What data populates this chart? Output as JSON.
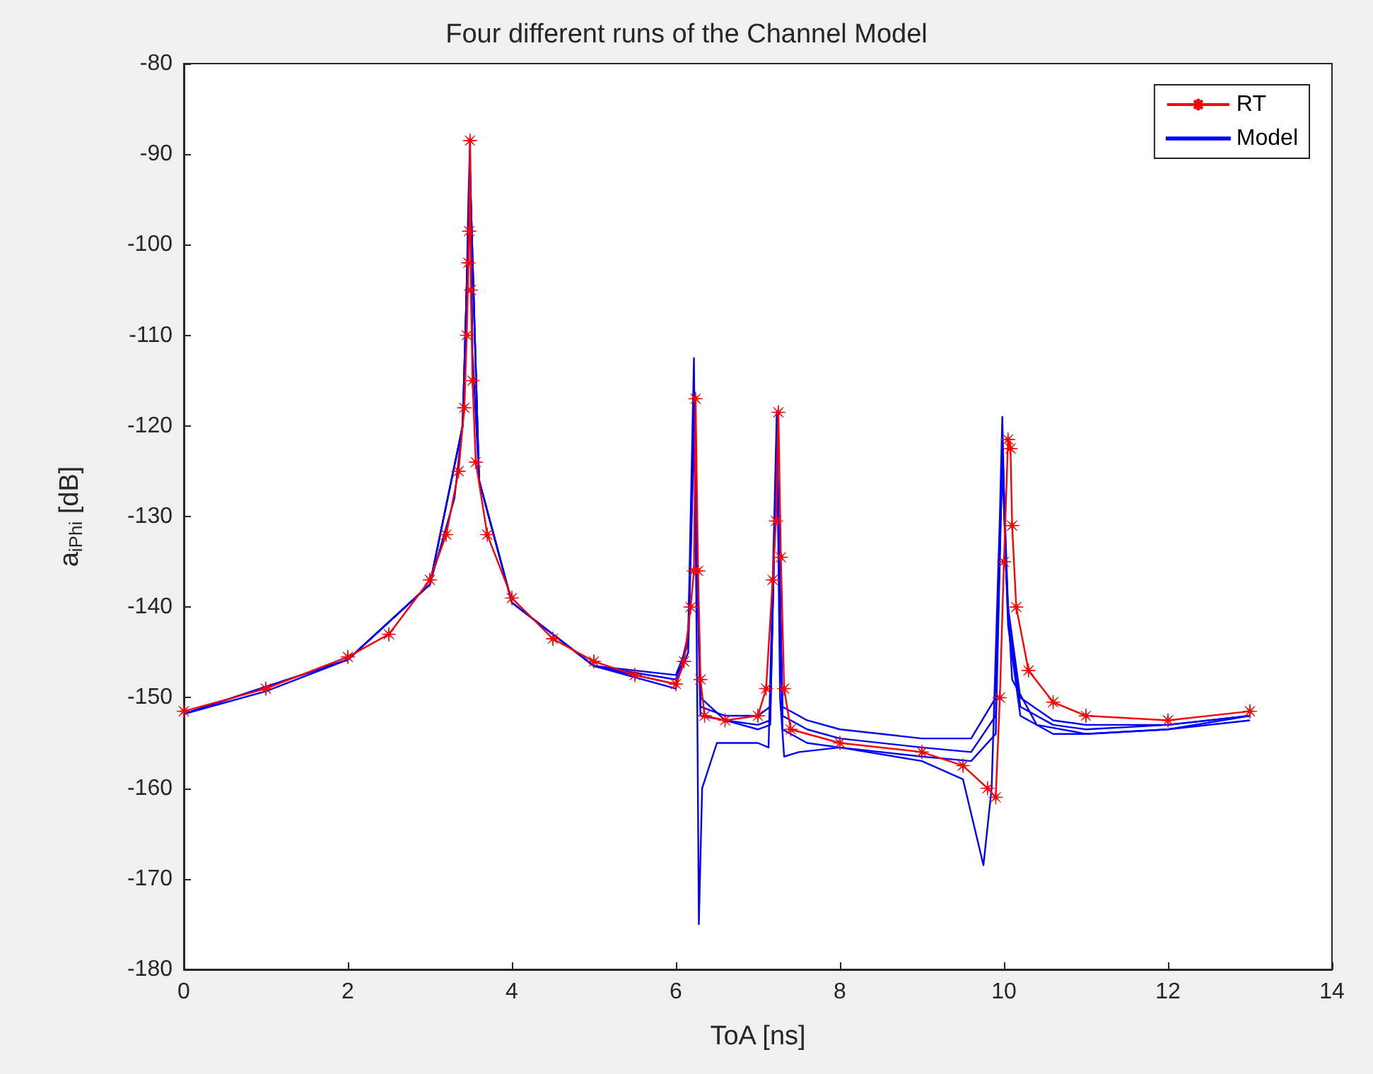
{
  "chart_data": {
    "type": "line",
    "title": "Four different runs of the Channel Model",
    "xlabel": "ToA [ns]",
    "ylabel": "a$_{iPhi}$ [dB]",
    "xlim": [
      0,
      14
    ],
    "xticks": [
      0,
      2,
      4,
      6,
      8,
      10,
      12,
      14
    ],
    "ylim": [
      -180,
      -80
    ],
    "yticks": [
      -180,
      -170,
      -160,
      -150,
      -140,
      -130,
      -120,
      -110,
      -100,
      -90,
      -80
    ],
    "grid": false,
    "legend": "top right",
    "series": [
      {
        "name": "RT",
        "color": "#ff0000",
        "marker": "star",
        "x": [
          0,
          1,
          2,
          2.5,
          3,
          3.2,
          3.35,
          3.42,
          3.45,
          3.47,
          3.48,
          3.49,
          3.5,
          3.52,
          3.56,
          3.7,
          4,
          4.5,
          5,
          5.5,
          6,
          6.1,
          6.18,
          6.22,
          6.24,
          6.27,
          6.3,
          6.35,
          6.6,
          7,
          7.1,
          7.18,
          7.22,
          7.25,
          7.28,
          7.32,
          7.4,
          8,
          9,
          9.5,
          9.8,
          9.9,
          9.95,
          10,
          10.05,
          10.08,
          10.1,
          10.15,
          10.3,
          10.6,
          11,
          12,
          13
        ],
        "values": [
          -151.5,
          -149,
          -145.5,
          -143,
          -137,
          -132,
          -125,
          -118,
          -110,
          -102,
          -98.5,
          -88.5,
          -105,
          -115,
          -124,
          -132,
          -139,
          -143.5,
          -146,
          -147.5,
          -148.5,
          -146,
          -140,
          -136,
          -117,
          -136,
          -148,
          -152,
          -152.5,
          -152,
          -149,
          -137,
          -130.5,
          -118.5,
          -134.5,
          -149,
          -153.5,
          -155,
          -156,
          -157.5,
          -160,
          -161,
          -150,
          -135,
          -121.5,
          -122.5,
          -131,
          -140,
          -147,
          -150.5,
          -152,
          -152.5,
          -151.5
        ]
      },
      {
        "name": "Model",
        "color": "#0000ff",
        "marker": "none",
        "x": [
          0,
          1,
          2,
          3,
          3.3,
          3.42,
          3.47,
          3.49,
          3.52,
          3.6,
          4,
          5,
          6,
          6.15,
          6.22,
          6.26,
          6.28,
          6.32,
          6.5,
          7,
          7.13,
          7.2,
          7.23,
          7.27,
          7.32,
          7.5,
          8,
          9,
          9.5,
          9.75,
          9.85,
          9.95,
          9.98,
          10.02,
          10.1,
          10.4,
          11,
          12,
          13
        ],
        "values": [
          -151.8,
          -149.3,
          -145.8,
          -137.5,
          -128,
          -118,
          -95,
          -88.5,
          -112,
          -126,
          -139.5,
          -146.5,
          -149,
          -143,
          -112.5,
          -150,
          -175,
          -160,
          -155,
          -155,
          -155.5,
          -130,
          -118.5,
          -150,
          -156.5,
          -156,
          -155.5,
          -157,
          -159,
          -168.5,
          -160,
          -130,
          -119,
          -135,
          -148,
          -153,
          -154,
          -153.5,
          -152
        ]
      },
      {
        "color": "#0000ff",
        "marker": "none",
        "x": [
          0,
          2,
          3,
          3.4,
          3.49,
          3.6,
          4,
          5,
          6,
          6.15,
          6.22,
          6.3,
          6.6,
          7,
          7.15,
          7.23,
          7.3,
          7.6,
          8,
          9,
          9.6,
          9.9,
          9.98,
          10.05,
          10.2,
          10.6,
          11,
          12,
          13
        ],
        "values": [
          -151.8,
          -145.8,
          -137.5,
          -120,
          -92,
          -126,
          -139.5,
          -146.5,
          -148,
          -144,
          -118,
          -150,
          -152.5,
          -153.5,
          -153,
          -120,
          -152,
          -153.5,
          -154.5,
          -155.5,
          -156,
          -152,
          -122,
          -140,
          -150,
          -152.5,
          -153,
          -153,
          -152
        ]
      },
      {
        "color": "#0000ff",
        "marker": "none",
        "x": [
          0,
          2,
          3,
          3.4,
          3.49,
          3.6,
          4,
          5,
          6,
          6.15,
          6.22,
          6.3,
          6.6,
          7,
          7.15,
          7.23,
          7.3,
          7.6,
          8,
          9,
          9.6,
          9.9,
          9.98,
          10.05,
          10.2,
          10.6,
          11,
          12,
          13
        ],
        "values": [
          -151.8,
          -145.8,
          -137.5,
          -120,
          -92,
          -126,
          -139.5,
          -146.5,
          -147.5,
          -144,
          -120,
          -151,
          -152,
          -152,
          -151,
          -122,
          -151,
          -152.5,
          -153.5,
          -154.5,
          -154.5,
          -150,
          -124,
          -142,
          -152,
          -154,
          -154,
          -153.5,
          -152.5
        ]
      },
      {
        "color": "#0000ff",
        "marker": "none",
        "x": [
          0,
          2,
          3,
          3.4,
          3.49,
          3.6,
          4,
          5,
          6,
          6.15,
          6.22,
          6.3,
          6.6,
          7,
          7.15,
          7.23,
          7.3,
          7.6,
          8,
          9,
          9.6,
          9.9,
          9.98,
          10.05,
          10.2,
          10.6,
          11,
          12,
          13
        ],
        "values": [
          -151.8,
          -145.8,
          -137.5,
          -120,
          -92,
          -126,
          -139.5,
          -146.5,
          -148.5,
          -145,
          -121,
          -152,
          -152.5,
          -153,
          -152.5,
          -121,
          -153.5,
          -155,
          -155.5,
          -156.5,
          -157,
          -154,
          -123,
          -141,
          -151,
          -153,
          -153.5,
          -153,
          -152
        ]
      }
    ]
  }
}
